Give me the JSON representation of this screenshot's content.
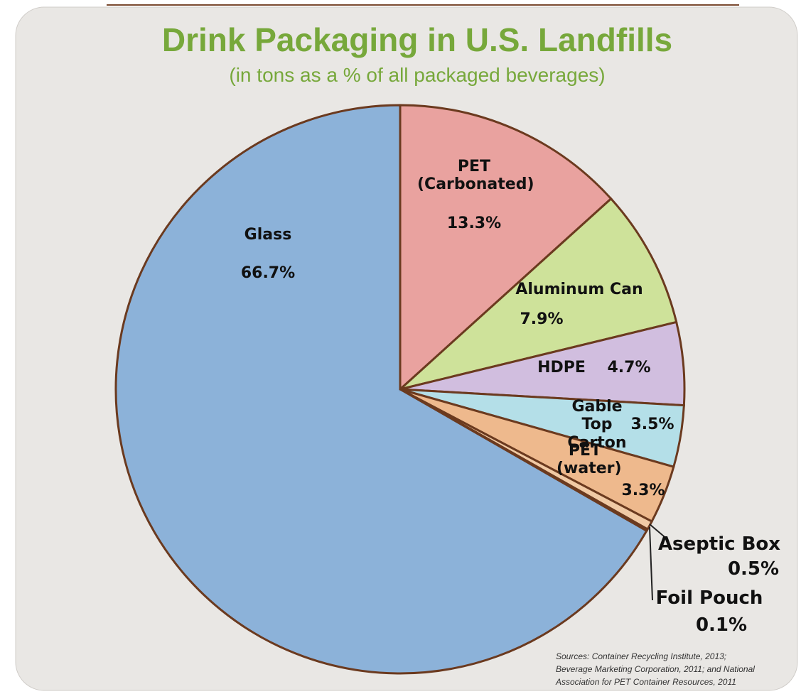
{
  "chart_data": {
    "type": "pie",
    "title": "Drink Packaging in U.S. Landfills",
    "subtitle": "(in tons as a % of all packaged beverages)",
    "categories": [
      "PET (Carbonated)",
      "Aluminum Can",
      "HDPE",
      "Gable Top Carton",
      "PET (water)",
      "Aseptic Box",
      "Foil Pouch",
      "Glass"
    ],
    "values": [
      13.3,
      7.9,
      4.7,
      3.5,
      3.3,
      0.5,
      0.1,
      66.7
    ],
    "value_labels": [
      "13.3%",
      "7.9%",
      "4.7%",
      "3.5%",
      "3.3%",
      "0.5%",
      "0.1%",
      "66.7%"
    ],
    "colors": [
      "#e99593",
      "#c9e08d",
      "#cdb6de",
      "#aadde9",
      "#efb07e",
      "#f2c49a",
      "#efc08f",
      "#7ba8d7"
    ],
    "sources": [
      "Sources:  Container Recycling Institute, 2013;",
      "Beverage Marketing Corporation, 2011; and National",
      "Association for PET Container Resources, 2011"
    ]
  }
}
